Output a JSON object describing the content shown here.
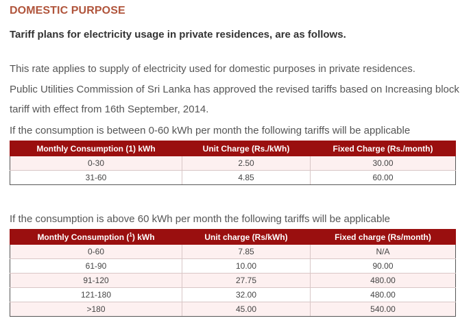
{
  "title": "DOMESTIC PURPOSE",
  "subtitle": "Tariff plans for electricity usage in private residences, are as follows.",
  "paragraphs": [
    "This rate applies to supply of electricity used for domestic purposes in private residences.",
    "Public Utilities Commission of Sri Lanka has approved the revised tariffs based on Increasing block",
    "tariff with effect from 16th September, 2014.",
    "If the consumption is between 0-60 kWh per month the following tariffs will be applicable"
  ],
  "table1": {
    "headers": [
      "Monthly Consumption (1) kWh",
      "Unit Charge (Rs./kWh)",
      "Fixed Charge (Rs./month)"
    ],
    "rows": [
      [
        "0-30",
        "2.50",
        "30.00"
      ],
      [
        "31-60",
        "4.85",
        "60.00"
      ]
    ]
  },
  "intro2": "If the consumption is above 60 kWh per month the following tariffs will be applicable",
  "table2": {
    "headers": {
      "col1_prefix": "Monthly Consumption (",
      "col1_sup": "1",
      "col1_suffix": ") kWh",
      "col2": "Unit charge (Rs/kWh)",
      "col3": "Fixed charge (Rs/month)"
    },
    "rows": [
      [
        "0-60",
        "7.85",
        "N/A"
      ],
      [
        "61-90",
        "10.00",
        "90.00"
      ],
      [
        "91-120",
        "27.75",
        "480.00"
      ],
      [
        "121-180",
        "32.00",
        "480.00"
      ],
      [
        ">180",
        "45.00",
        "540.00"
      ]
    ]
  }
}
